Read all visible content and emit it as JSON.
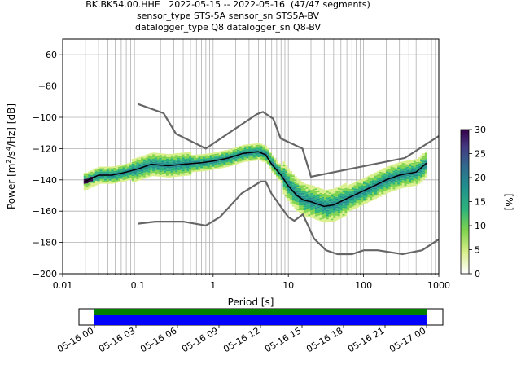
{
  "title_lines": [
    "BK.BK54.00.HHE   2022-05-15 -- 2022-05-16  (47/47 segments)",
    "sensor_type STS-5A sensor_sn STS5A-BV",
    "datalogger_type Q8 datalogger_sn Q8-BV"
  ],
  "chart_data": {
    "type": "heatmap",
    "xlabel": "Period [s]",
    "ylabel": "Power [m²/s⁴/Hz] [dB]",
    "xscale": "log",
    "xlim": [
      0.01,
      1000
    ],
    "ylim": [
      -200,
      -50
    ],
    "x_ticks": [
      0.01,
      0.1,
      1,
      10,
      100,
      1000
    ],
    "x_tick_labels": [
      "0.01",
      "0.1",
      "1",
      "10",
      "100",
      "1000"
    ],
    "y_ticks": [
      -200,
      -180,
      -160,
      -140,
      -120,
      -100,
      -80,
      -60
    ],
    "y_tick_labels": [
      "−200",
      "−180",
      "−160",
      "−140",
      "−120",
      "−100",
      "−80",
      "−60"
    ],
    "grid": true,
    "colorbar": {
      "label": "[%]",
      "range": [
        0,
        30
      ],
      "ticks": [
        0,
        5,
        10,
        15,
        20,
        25,
        30
      ],
      "colors": [
        "#ffffff",
        "#d9ef8b",
        "#7fd34e",
        "#2db27d",
        "#21908d",
        "#31688e",
        "#443a83",
        "#35014a"
      ]
    },
    "median": {
      "color": "#000000",
      "x": [
        0.02,
        0.022,
        0.03,
        0.045,
        0.07,
        0.1,
        0.15,
        0.25,
        0.4,
        0.7,
        1.0,
        1.6,
        2.5,
        4.0,
        5.0,
        6.0,
        8.0,
        10,
        13,
        16,
        20,
        30,
        40,
        60,
        100,
        150,
        200,
        300,
        500,
        700
      ],
      "y": [
        -141,
        -140,
        -137,
        -137,
        -135,
        -133,
        -130,
        -131,
        -130,
        -129,
        -128,
        -126,
        -123,
        -122,
        -124,
        -130,
        -137,
        -144,
        -150,
        -153,
        -154,
        -157,
        -156,
        -152,
        -147,
        -143,
        -140,
        -137,
        -135,
        -129
      ]
    },
    "noise_models": [
      {
        "color": "#666666",
        "x": [
          0.1,
          0.22,
          0.32,
          0.8,
          3.8,
          4.6,
          6.3,
          7.9,
          15.4,
          20,
          354.8,
          1000
        ],
        "y": [
          -91.5,
          -97.4,
          -110.5,
          -120,
          -98,
          -96.5,
          -101,
          -113.5,
          -120,
          -138,
          -126,
          -112
        ]
      },
      {
        "color": "#666666",
        "x": [
          0.1,
          0.17,
          0.4,
          0.8,
          1.24,
          2.4,
          4.3,
          5.0,
          6.0,
          10.0,
          12.0,
          15.6,
          21.9,
          31.6,
          45,
          70,
          101,
          154,
          328,
          600,
          1000
        ],
        "y": [
          -168,
          -166.7,
          -166.7,
          -169.2,
          -163.7,
          -148.6,
          -141.1,
          -141.1,
          -149,
          -163.8,
          -166.2,
          -162.1,
          -177.5,
          -185,
          -187.5,
          -187.5,
          -185,
          -185,
          -187.5,
          -185,
          -178
        ]
      }
    ],
    "data_availability": {
      "x_tick_labels": [
        "05-16 00",
        "05-16 03",
        "05-16 06",
        "05-16 09",
        "05-16 12",
        "05-16 15",
        "05-16 18",
        "05-16 21",
        "05-17 00"
      ],
      "bars": [
        {
          "color": "#008000"
        },
        {
          "color": "#0000ff"
        }
      ]
    }
  }
}
